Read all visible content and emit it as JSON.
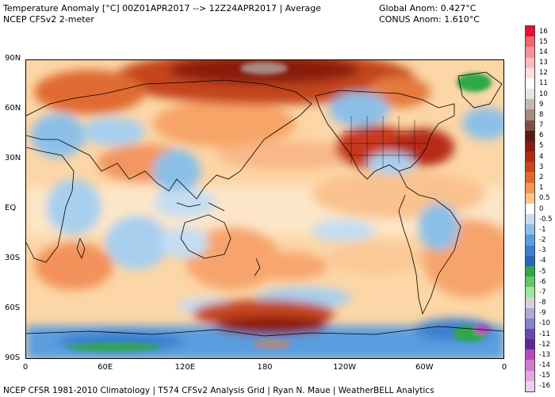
{
  "header": {
    "title_line1": "Temperature Anomaly [°C] 00Z01APR2017 --> 12Z24APR2017 | Average",
    "title_line2": "NCEP CFSv2 2-meter",
    "global_anom": "Global Anom: 0.427°C",
    "conus_anom": "CONUS Anom: 1.610°C"
  },
  "footer": "NCEP CFSR 1981-2010 Climatology | T574 CFSv2 Analysis Grid | Ryan N. Maue | WeatherBELL Analytics",
  "map": {
    "lat_labels": [
      "90N",
      "60N",
      "30N",
      "EQ",
      "30S",
      "60S",
      "90S"
    ],
    "lon_labels": [
      "0",
      "60E",
      "120E",
      "180",
      "120W",
      "60W",
      "0"
    ]
  },
  "colorbar": {
    "labels": [
      "16",
      "15",
      "14",
      "13",
      "12",
      "11",
      "10",
      "9",
      "8",
      "7",
      "6",
      "5",
      "4",
      "3",
      "2",
      "1",
      "0.5",
      "0",
      "-0.5",
      "-1",
      "-2",
      "-3",
      "-4",
      "-5",
      "-6",
      "-7",
      "-8",
      "-9",
      "-10",
      "-11",
      "-12",
      "-13",
      "-14",
      "-15",
      "-16"
    ],
    "colors": [
      "#e8102a",
      "#f0646e",
      "#f5929b",
      "#f8bcc2",
      "#fbdfe2",
      "#ffffff",
      "#e6e6e6",
      "#c8b8b4",
      "#a88a84",
      "#805048",
      "#5a1a12",
      "#8a1a10",
      "#b02a12",
      "#cc4416",
      "#e26a28",
      "#f09a50",
      "#fcc68a",
      "#ffffff",
      "#c4ddf2",
      "#8cbfe8",
      "#5a9ee0",
      "#3a7fd0",
      "#2a63b8",
      "#2ea84a",
      "#60c864",
      "#9ee49a",
      "#d4d4d4",
      "#b0a8d6",
      "#8a80c8",
      "#6a48b0",
      "#5a2a98",
      "#b84ab8",
      "#d07ad0",
      "#e2a6e2",
      "#f0cef0"
    ]
  }
}
